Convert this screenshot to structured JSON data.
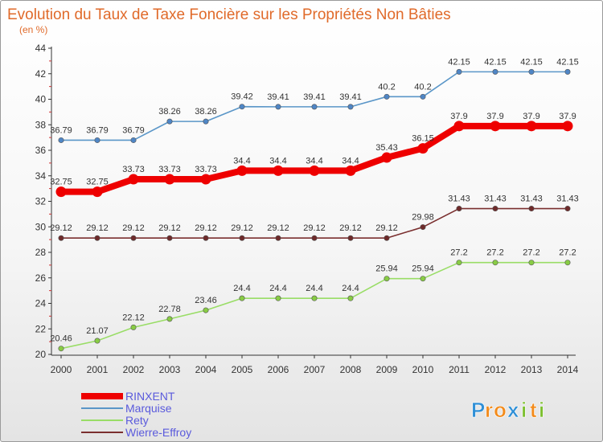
{
  "logo": {
    "text": "Proxiti",
    "letters": [
      "P",
      "r",
      "o",
      "x",
      "i",
      "t",
      "i"
    ],
    "colors": [
      "#2f8fd6",
      "#f28a1a",
      "#f28a1a",
      "#2f8fd6",
      "#7cbf2e",
      "#f28a1a",
      "#7cbf2e"
    ]
  },
  "chart_data": {
    "type": "line",
    "title": "Evolution du Taux de Taxe Foncière sur les Propriétés Non Bâties",
    "subtitle": "(en %)",
    "x": [
      2000,
      2001,
      2002,
      2003,
      2004,
      2005,
      2006,
      2007,
      2008,
      2009,
      2010,
      2011,
      2012,
      2013,
      2014
    ],
    "ylim": [
      20,
      44
    ],
    "yticks": [
      20,
      22,
      24,
      26,
      28,
      30,
      32,
      34,
      36,
      38,
      40,
      42,
      44
    ],
    "grid": false,
    "legend_position": "bottom-left",
    "series": [
      {
        "name": "Marquise",
        "color": "#5a96c8",
        "point_color": "#4f86c6",
        "labels": [
          "36.79",
          "36.79",
          "36.79",
          "38.26",
          "38.26",
          "39.42",
          "39.41",
          "39.41",
          "39.41",
          "40.2",
          "40.2",
          "42.15",
          "42.15",
          "42.15",
          "42.15"
        ],
        "values": [
          36.79,
          36.79,
          36.79,
          38.26,
          38.26,
          39.42,
          39.41,
          39.41,
          39.41,
          40.2,
          40.2,
          42.15,
          42.15,
          42.15,
          42.15
        ]
      },
      {
        "name": "RINXENT",
        "color": "#ee0000",
        "point_color": "#ee0000",
        "highlight": true,
        "labels": [
          "32.75",
          "32.75",
          "33.73",
          "33.73",
          "33.73",
          "34.4",
          "34.4",
          "34.4",
          "34.4",
          "35.43",
          "36.15",
          "37.9",
          "37.9",
          "37.9",
          "37.9"
        ],
        "values": [
          32.75,
          32.75,
          33.73,
          33.73,
          33.73,
          34.4,
          34.4,
          34.4,
          34.4,
          35.43,
          36.15,
          37.9,
          37.9,
          37.9,
          37.9
        ]
      },
      {
        "name": "Wierre-Effroy",
        "color": "#7a2f2f",
        "point_color": "#6e2a2a",
        "labels": [
          "29.12",
          "29.12",
          "29.12",
          "29.12",
          "29.12",
          "29.12",
          "29.12",
          "29.12",
          "29.12",
          "29.12",
          "29.98",
          "31.43",
          "31.43",
          "31.43",
          "31.43"
        ],
        "values": [
          29.12,
          29.12,
          29.12,
          29.12,
          29.12,
          29.12,
          29.12,
          29.12,
          29.12,
          29.12,
          29.98,
          31.43,
          31.43,
          31.43,
          31.43
        ]
      },
      {
        "name": "Rety",
        "color": "#99dd66",
        "point_color": "#88cc44",
        "labels": [
          "20.46",
          "21.07",
          "22.12",
          "22.78",
          "23.46",
          "24.4",
          "24.4",
          "24.4",
          "24.4",
          "25.94",
          "25.94",
          "27.2",
          "27.2",
          "27.2",
          "27.2"
        ],
        "values": [
          20.46,
          21.07,
          22.12,
          22.78,
          23.46,
          24.4,
          24.4,
          24.4,
          24.4,
          25.94,
          25.94,
          27.2,
          27.2,
          27.2,
          27.2
        ]
      }
    ],
    "legend": [
      "RINXENT",
      "Marquise",
      "Rety",
      "Wierre-Effroy"
    ]
  }
}
